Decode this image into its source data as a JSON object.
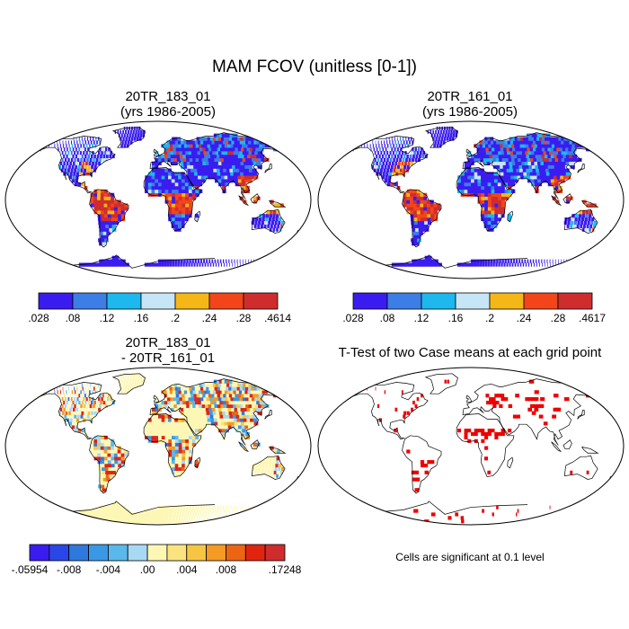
{
  "main_title": "MAM FCOV (unitless [0-1])",
  "panels": {
    "p1": {
      "title_line1": "20TR_183_01",
      "title_line2": "(yrs 1986-2005)",
      "colorbar": {
        "colors": [
          "#3a1cf0",
          "#3d7ee6",
          "#1cb8ee",
          "#c6e5f7",
          "#f5b718",
          "#f2451a",
          "#cf2d2d"
        ],
        "labels": [
          ".028",
          ".08",
          ".12",
          ".16",
          ".2",
          ".24",
          ".28",
          ".4614"
        ]
      }
    },
    "p2": {
      "title_line1": "20TR_161_01",
      "title_line2": "(yrs 1986-2005)",
      "colorbar": {
        "colors": [
          "#3a1cf0",
          "#3d7ee6",
          "#1cb8ee",
          "#c6e5f7",
          "#f5b718",
          "#f2451a",
          "#cf2d2d"
        ],
        "labels": [
          ".028",
          ".08",
          ".12",
          ".16",
          ".2",
          ".24",
          ".28",
          ".4617"
        ]
      }
    },
    "p3": {
      "title_line1": "20TR_183_01",
      "title_line2": "- 20TR_161_01",
      "colorbar": {
        "colors": [
          "#3a1cf0",
          "#2a46e8",
          "#2e78de",
          "#3a98e6",
          "#5ab8ea",
          "#a7d9f2",
          "#fdf7b6",
          "#fbe380",
          "#f7c544",
          "#f59a23",
          "#ec6514",
          "#e02410",
          "#cf2d2d"
        ],
        "labels": [
          "-.05954",
          "-.008",
          "-.004",
          ".00",
          ".004",
          ".008",
          ".17248"
        ]
      }
    },
    "p4": {
      "title": "T-Test of two Case means at each grid point",
      "note": "Cells are significant at 0.1 level",
      "sig_color": "#ee0000"
    }
  }
}
